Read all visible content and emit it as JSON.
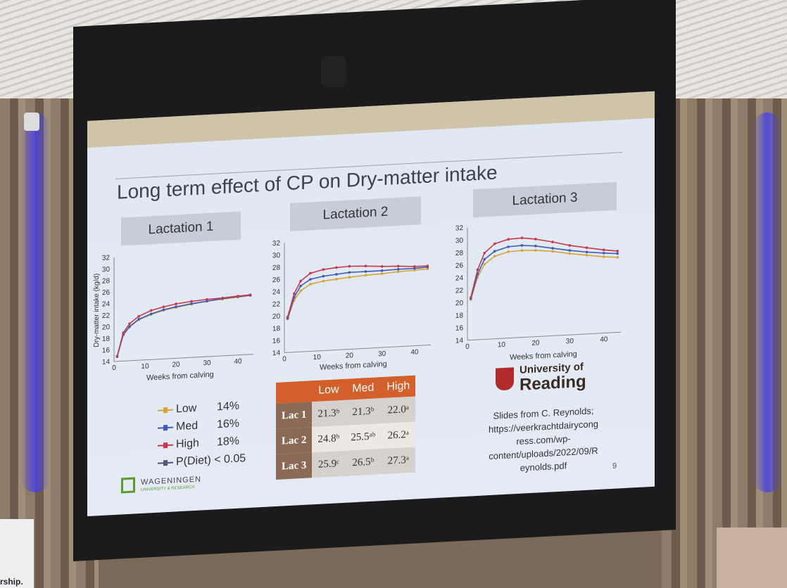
{
  "slide": {
    "title": "Long term effect of CP on Dry-matter intake",
    "page_number": "9"
  },
  "panels": [
    {
      "label": "Lactation 1",
      "y_axis_label": "Dry-matter intake (kg/d)",
      "x_axis_label": "Weeks from calving"
    },
    {
      "label": "Lactation 2",
      "x_axis_label": "Weeks from calving"
    },
    {
      "label": "Lactation 3",
      "x_axis_label": "Weeks from calving"
    }
  ],
  "legend": [
    {
      "name": "Low",
      "pct": "14%",
      "color": "#d9a33a"
    },
    {
      "name": "Med",
      "pct": "16%",
      "color": "#3d5bbf"
    },
    {
      "name": "High",
      "pct": "18%",
      "color": "#c8384a"
    },
    {
      "name": "P(Diet) < 0.05",
      "pct": "",
      "color": "#555577"
    }
  ],
  "table": {
    "headers": [
      "",
      "Low",
      "Med",
      "High"
    ],
    "rows": [
      {
        "label": "Lac 1",
        "low": "21.3ᵇ",
        "med": "21.3ᵇ",
        "high": "22.0ᵃ"
      },
      {
        "label": "Lac 2",
        "low": "24.8ᵇ",
        "med": "25.5ᵃᵇ",
        "high": "26.2ᵃ"
      },
      {
        "label": "Lac 3",
        "low": "25.9ᶜ",
        "med": "26.5ᵇ",
        "high": "27.3ᵃ"
      }
    ]
  },
  "university": {
    "line1": "University of",
    "line2": "Reading"
  },
  "credit": [
    "Slides from C. Reynolds;",
    "https://veerkrachtdairycong",
    "ress.com/wp-",
    "content/uploads/2022/09/R",
    "eynolds.pdf"
  ],
  "wageningen": {
    "line1": "WAGENINGEN",
    "line2": "UNIVERSITY & RESEARCH"
  },
  "room_sign_fragment": "rship.",
  "chart_data": [
    {
      "type": "line",
      "title": "Lactation 1",
      "xlabel": "Weeks from calving",
      "ylabel": "Dry-matter intake (kg/d)",
      "ylim": [
        14,
        32
      ],
      "xlim": [
        0,
        45
      ],
      "yticks": [
        14,
        16,
        18,
        20,
        22,
        24,
        26,
        28,
        30,
        32
      ],
      "xticks": [
        0,
        10,
        20,
        30,
        40
      ],
      "series": [
        {
          "name": "Low",
          "x": [
            1,
            3,
            5,
            8,
            12,
            16,
            20,
            25,
            30,
            35,
            40,
            44
          ],
          "values": [
            14.8,
            18.5,
            19.8,
            21.0,
            21.8,
            22.4,
            22.8,
            23.2,
            23.6,
            23.8,
            24.0,
            24.2
          ]
        },
        {
          "name": "Med",
          "x": [
            1,
            3,
            5,
            8,
            12,
            16,
            20,
            25,
            30,
            35,
            40,
            44
          ],
          "values": [
            14.8,
            18.6,
            19.9,
            21.1,
            21.9,
            22.5,
            22.9,
            23.3,
            23.6,
            23.9,
            24.1,
            24.2
          ]
        },
        {
          "name": "High",
          "x": [
            1,
            3,
            5,
            8,
            12,
            16,
            20,
            25,
            30,
            35,
            40,
            44
          ],
          "values": [
            14.9,
            18.9,
            20.4,
            21.6,
            22.5,
            23.0,
            23.4,
            23.7,
            23.9,
            24.0,
            24.2,
            24.3
          ]
        }
      ]
    },
    {
      "type": "line",
      "title": "Lactation 2",
      "xlabel": "Weeks from calving",
      "ylim": [
        14,
        32
      ],
      "xlim": [
        0,
        45
      ],
      "yticks": [
        14,
        16,
        18,
        20,
        22,
        24,
        26,
        28,
        30,
        32
      ],
      "xticks": [
        0,
        10,
        20,
        30,
        40
      ],
      "series": [
        {
          "name": "Low",
          "x": [
            1,
            3,
            5,
            8,
            12,
            16,
            20,
            25,
            30,
            35,
            40,
            44
          ],
          "values": [
            19.5,
            22.5,
            24.0,
            25.0,
            25.4,
            25.6,
            25.8,
            26.0,
            26.1,
            26.3,
            26.4,
            26.5
          ]
        },
        {
          "name": "Med",
          "x": [
            1,
            3,
            5,
            8,
            12,
            16,
            20,
            25,
            30,
            35,
            40,
            44
          ],
          "values": [
            19.6,
            23.0,
            24.8,
            25.8,
            26.2,
            26.4,
            26.6,
            26.6,
            26.6,
            26.7,
            26.7,
            26.8
          ]
        },
        {
          "name": "High",
          "x": [
            1,
            3,
            5,
            8,
            12,
            16,
            20,
            25,
            30,
            35,
            40,
            44
          ],
          "values": [
            19.8,
            23.6,
            25.6,
            26.8,
            27.3,
            27.5,
            27.6,
            27.5,
            27.3,
            27.2,
            27.0,
            27.0
          ]
        }
      ]
    },
    {
      "type": "line",
      "title": "Lactation 3",
      "xlabel": "Weeks from calving",
      "ylim": [
        14,
        32
      ],
      "xlim": [
        0,
        45
      ],
      "yticks": [
        14,
        16,
        18,
        20,
        22,
        24,
        26,
        28,
        30,
        32
      ],
      "xticks": [
        0,
        10,
        20,
        30,
        40
      ],
      "series": [
        {
          "name": "Low",
          "x": [
            1,
            3,
            5,
            8,
            12,
            16,
            20,
            25,
            30,
            35,
            40,
            44
          ],
          "values": [
            20.5,
            24.0,
            26.0,
            27.2,
            27.8,
            27.9,
            27.8,
            27.5,
            27.0,
            26.6,
            26.2,
            26.0
          ]
        },
        {
          "name": "Med",
          "x": [
            1,
            3,
            5,
            8,
            12,
            16,
            20,
            25,
            30,
            35,
            40,
            44
          ],
          "values": [
            20.6,
            24.5,
            26.8,
            28.0,
            28.6,
            28.7,
            28.5,
            28.0,
            27.5,
            27.1,
            26.8,
            26.6
          ]
        },
        {
          "name": "High",
          "x": [
            1,
            3,
            5,
            8,
            12,
            16,
            20,
            25,
            30,
            35,
            40,
            44
          ],
          "values": [
            20.8,
            25.2,
            27.8,
            29.2,
            29.8,
            29.9,
            29.6,
            29.0,
            28.3,
            27.8,
            27.3,
            27.0
          ]
        }
      ]
    }
  ]
}
